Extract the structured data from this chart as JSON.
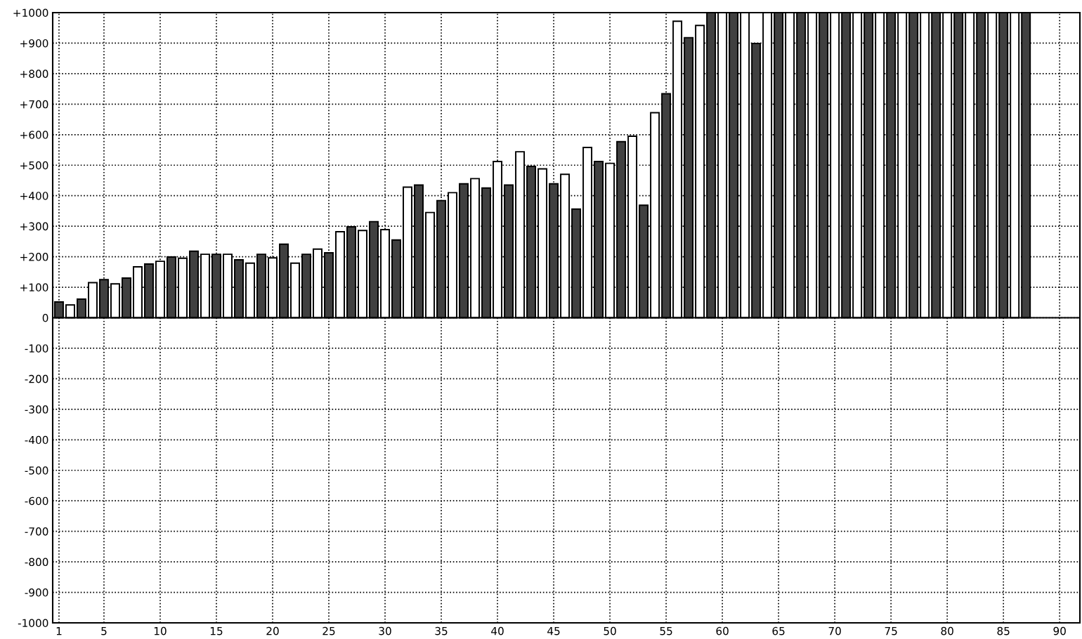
{
  "chart_data": {
    "type": "bar",
    "x": [
      1,
      2,
      3,
      4,
      5,
      6,
      7,
      8,
      9,
      10,
      11,
      12,
      13,
      14,
      15,
      16,
      17,
      18,
      19,
      20,
      21,
      22,
      23,
      24,
      25,
      26,
      27,
      28,
      29,
      30,
      31,
      32,
      33,
      34,
      35,
      36,
      37,
      38,
      39,
      40,
      41,
      42,
      43,
      44,
      45,
      46,
      47,
      48,
      49,
      50,
      51,
      52,
      53,
      54,
      55,
      56,
      57,
      58,
      59,
      60,
      61,
      62,
      63,
      64,
      65,
      66,
      67,
      68,
      69,
      70,
      71,
      72,
      73,
      74,
      75,
      76,
      77,
      78,
      79,
      80,
      81,
      82,
      83,
      84,
      85,
      86,
      87
    ],
    "values": [
      52,
      42,
      61,
      115,
      125,
      111,
      130,
      167,
      176,
      185,
      199,
      195,
      218,
      208,
      208,
      208,
      190,
      179,
      208,
      196,
      241,
      179,
      208,
      225,
      213,
      282,
      298,
      286,
      315,
      289,
      255,
      428,
      435,
      345,
      384,
      410,
      439,
      456,
      425,
      512,
      435,
      544,
      496,
      488,
      439,
      470,
      356,
      558,
      512,
      506,
      577,
      595,
      369,
      672,
      734,
      972,
      918,
      958,
      1000,
      1000,
      1000,
      1000,
      899,
      1000,
      1000,
      1000,
      1000,
      1000,
      1000,
      1000,
      1000,
      1000,
      1000,
      1000,
      1000,
      1000,
      1000,
      1000,
      1000,
      1000,
      1000,
      1000,
      1000,
      1000,
      1000,
      1000,
      1000
    ],
    "colors": [
      "#404040",
      "#ffffff",
      "#404040",
      "#ffffff",
      "#404040",
      "#ffffff",
      "#404040",
      "#ffffff",
      "#404040",
      "#ffffff",
      "#404040",
      "#ffffff",
      "#404040",
      "#ffffff",
      "#404040",
      "#ffffff",
      "#404040",
      "#ffffff",
      "#404040",
      "#ffffff",
      "#404040",
      "#ffffff",
      "#404040",
      "#ffffff",
      "#404040",
      "#ffffff",
      "#404040",
      "#ffffff",
      "#404040",
      "#ffffff",
      "#404040",
      "#ffffff",
      "#404040",
      "#ffffff",
      "#404040",
      "#ffffff",
      "#404040",
      "#ffffff",
      "#404040",
      "#ffffff",
      "#404040",
      "#ffffff",
      "#404040",
      "#ffffff",
      "#404040",
      "#ffffff",
      "#404040",
      "#ffffff",
      "#404040",
      "#ffffff",
      "#404040",
      "#ffffff",
      "#404040",
      "#ffffff",
      "#404040",
      "#ffffff",
      "#404040",
      "#ffffff",
      "#404040",
      "#ffffff",
      "#404040",
      "#ffffff",
      "#404040",
      "#ffffff",
      "#404040",
      "#ffffff",
      "#404040",
      "#ffffff",
      "#404040",
      "#ffffff",
      "#404040",
      "#ffffff",
      "#404040",
      "#ffffff",
      "#404040",
      "#ffffff",
      "#404040",
      "#ffffff",
      "#404040",
      "#ffffff",
      "#404040",
      "#ffffff",
      "#404040",
      "#ffffff",
      "#404040",
      "#ffffff",
      "#404040"
    ],
    "xlim": [
      0.44,
      91.8
    ],
    "xticks": [
      1,
      5,
      10,
      15,
      20,
      25,
      30,
      35,
      40,
      45,
      50,
      55,
      60,
      65,
      70,
      75,
      80,
      85,
      90
    ],
    "ylim": [
      -1000,
      1000
    ],
    "yticks": [
      {
        "value": -1000,
        "label": "-1000"
      },
      {
        "value": -900,
        "label": "-900"
      },
      {
        "value": -800,
        "label": "-800"
      },
      {
        "value": -700,
        "label": "-700"
      },
      {
        "value": -600,
        "label": "-600"
      },
      {
        "value": -500,
        "label": "-500"
      },
      {
        "value": -400,
        "label": "-400"
      },
      {
        "value": -300,
        "label": "-300"
      },
      {
        "value": -200,
        "label": "-200"
      },
      {
        "value": -100,
        "label": "-100"
      },
      0,
      {
        "value": 100,
        "label": "+100"
      },
      {
        "value": 200,
        "label": "+200"
      },
      {
        "value": 300,
        "label": "+300"
      },
      {
        "value": 400,
        "label": "+400"
      },
      {
        "value": 500,
        "label": "+500"
      },
      {
        "value": 600,
        "label": "+600"
      },
      {
        "value": 700,
        "label": "+700"
      },
      {
        "value": 800,
        "label": "+800"
      },
      {
        "value": 900,
        "label": "+900"
      },
      {
        "value": 1000,
        "label": "+1000"
      }
    ],
    "ref_lines": [
      {
        "axis": "y",
        "value": 0,
        "color": "#000000",
        "line_style": "solid"
      }
    ],
    "grid": true,
    "line_style": "dotted"
  }
}
